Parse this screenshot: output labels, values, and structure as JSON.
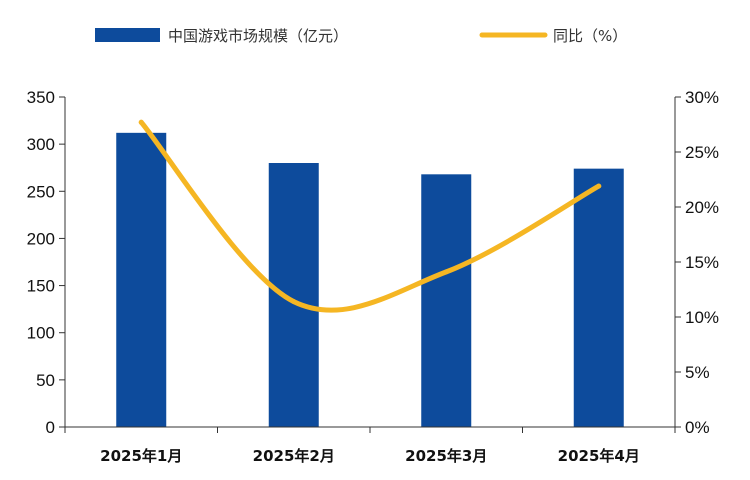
{
  "chart_data": {
    "type": "bar",
    "categories": [
      "2025年1月",
      "2025年2月",
      "2025年3月",
      "2025年4月"
    ],
    "series": [
      {
        "name": "中国游戏市场规模（亿元）",
        "type": "bar",
        "axis": "left",
        "values": [
          312,
          280,
          268,
          274
        ]
      },
      {
        "name": "同比（%）",
        "type": "line",
        "axis": "right",
        "values": [
          27.7,
          11.4,
          14.1,
          21.9
        ]
      }
    ],
    "y_left": {
      "min": 0,
      "max": 350,
      "step": 50,
      "ticks": [
        "0",
        "50",
        "100",
        "150",
        "200",
        "250",
        "300",
        "350"
      ]
    },
    "y_right": {
      "min": 0,
      "max": 30,
      "step": 5,
      "ticks": [
        "0%",
        "5%",
        "10%",
        "15%",
        "20%",
        "25%",
        "30%"
      ]
    },
    "legend_position": "top-center",
    "grid": false,
    "colors": {
      "bar": "#0D4B9C",
      "line": "#F5B623",
      "axis": "#333333"
    }
  }
}
